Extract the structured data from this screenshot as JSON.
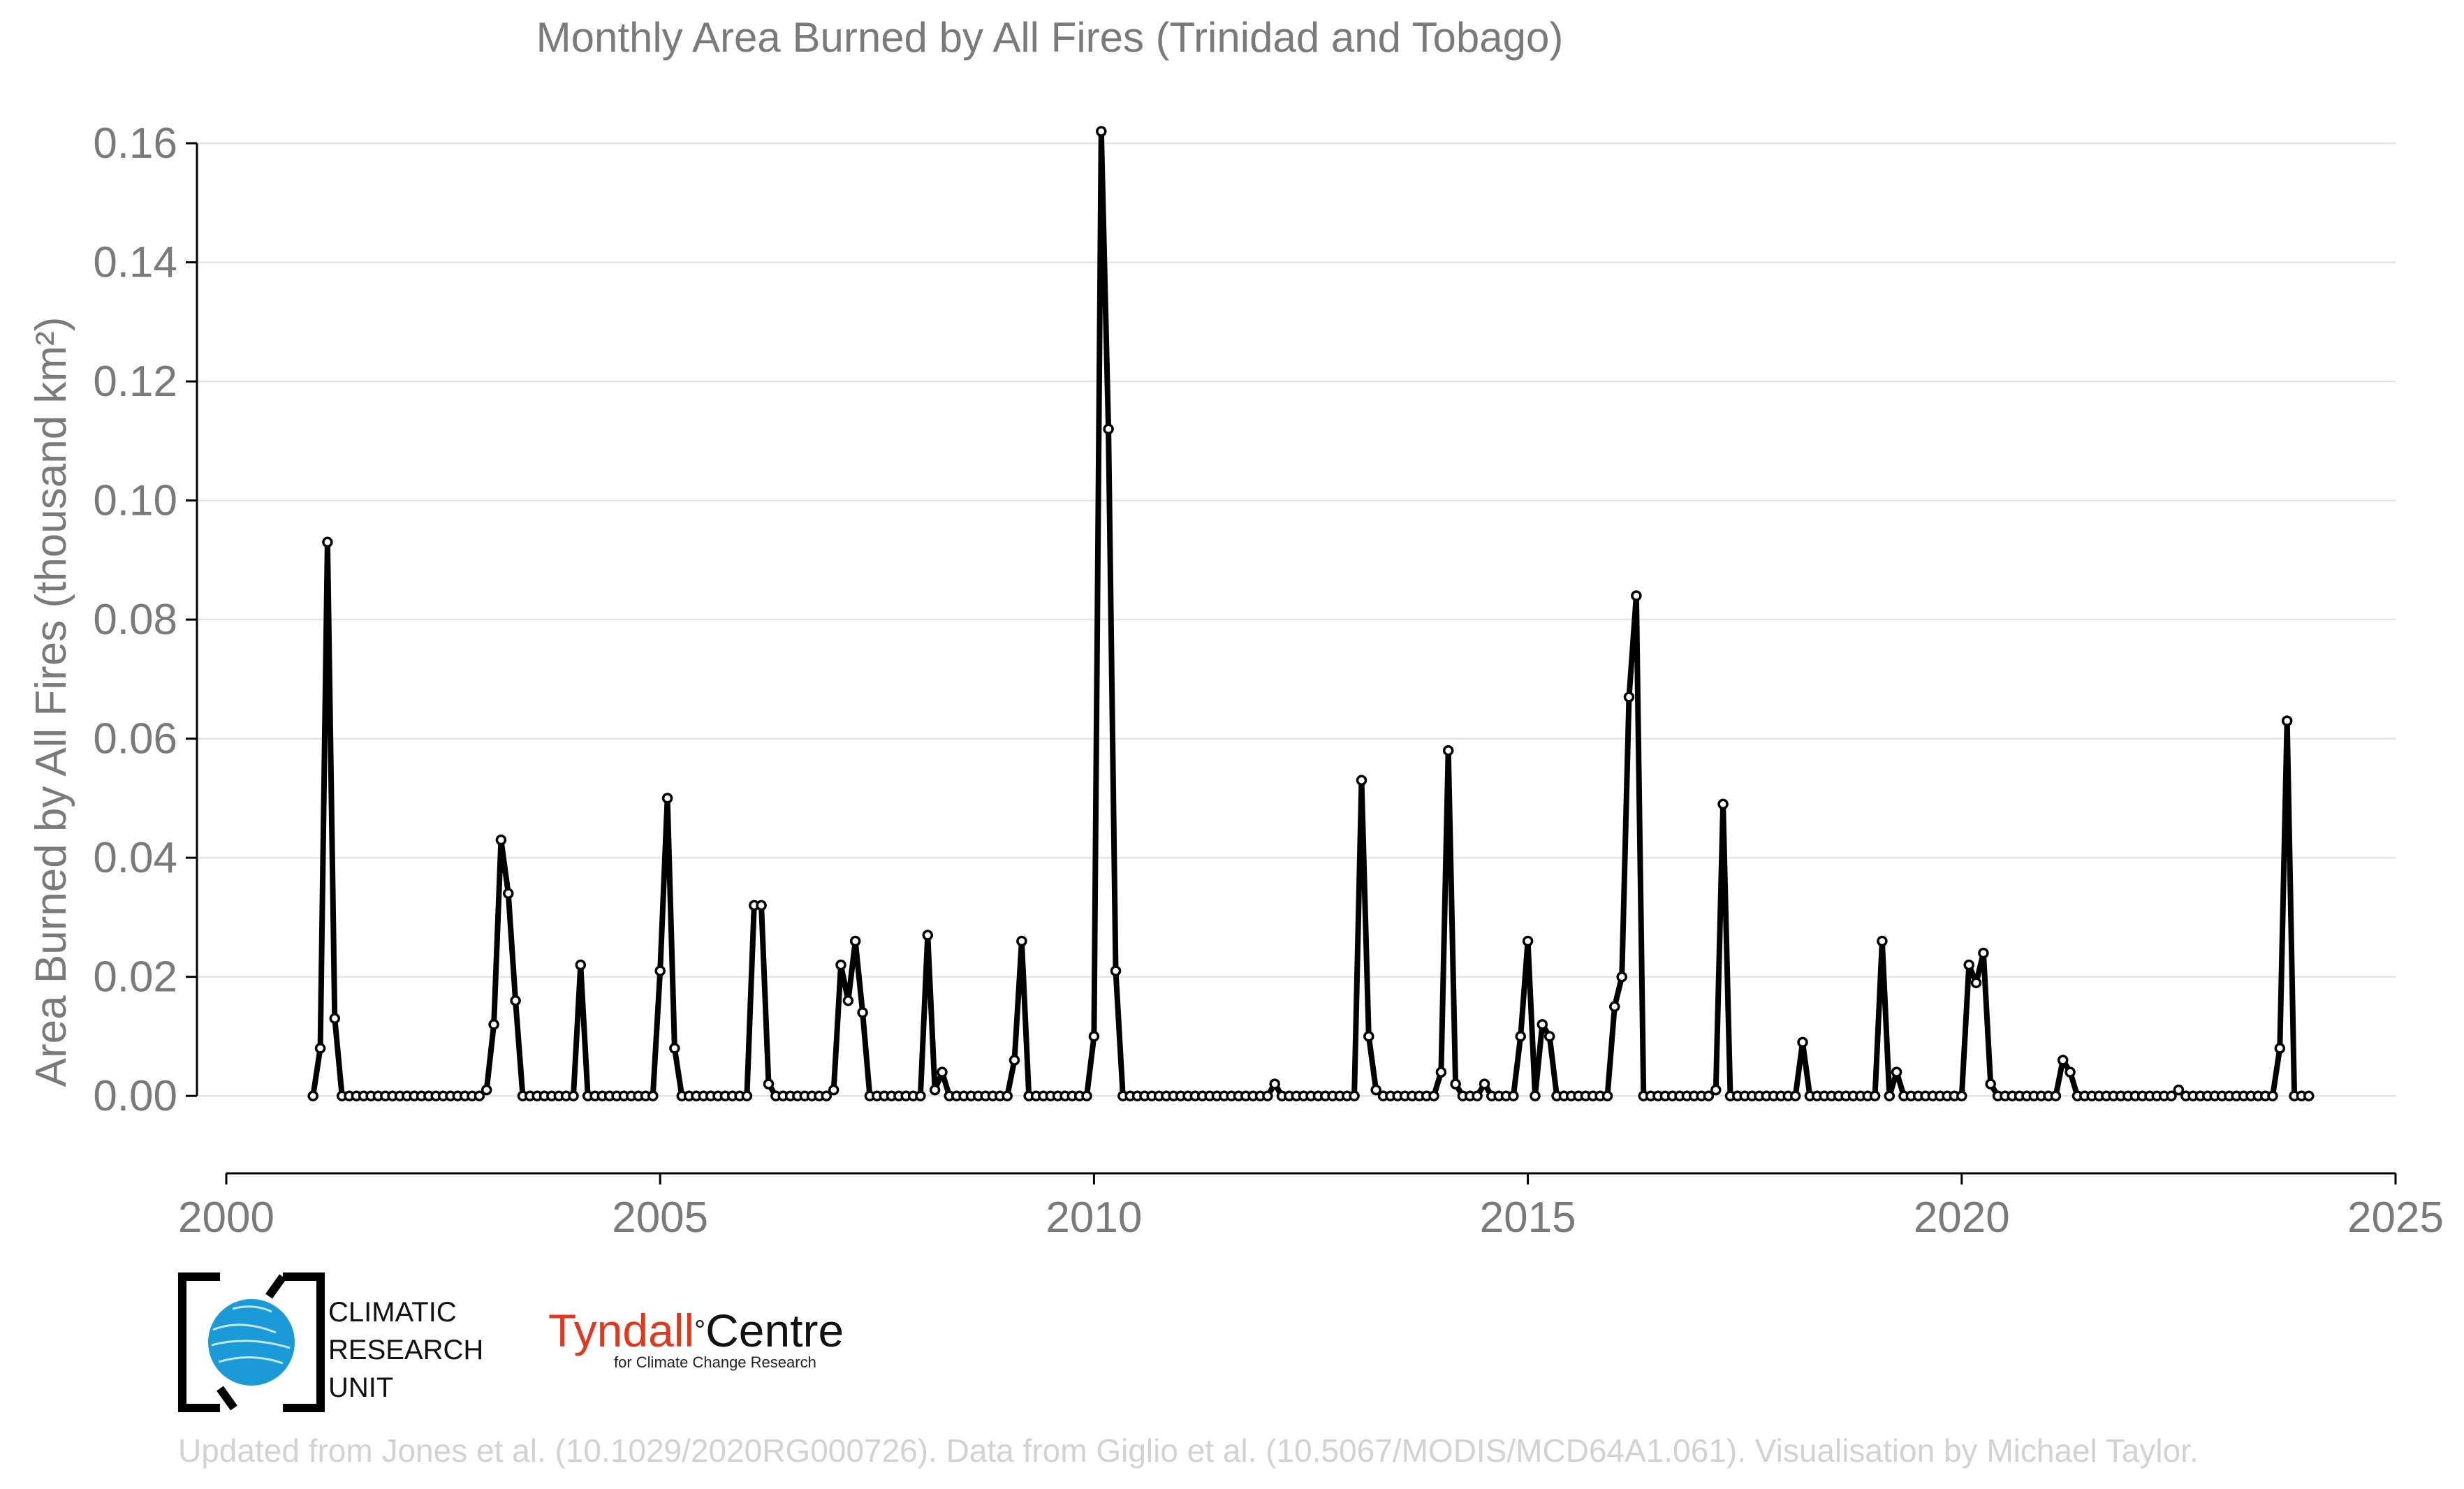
{
  "chart_data": {
    "type": "line",
    "title": "Monthly Area Burned by All Fires (Trinidad and Tobago)",
    "ylabel": "Area Burned by All Fires (thousand km²)",
    "xlabel": "",
    "xlim": [
      2000,
      2025
    ],
    "ylim": [
      -0.013,
      0.164
    ],
    "xticks": [
      2000,
      2005,
      2010,
      2015,
      2020,
      2025
    ],
    "yticks": [
      0.0,
      0.02,
      0.04,
      0.06,
      0.08,
      0.1,
      0.12,
      0.14,
      0.16
    ],
    "ytick_labels": [
      "0.00",
      "0.02",
      "0.04",
      "0.06",
      "0.08",
      "0.10",
      "0.12",
      "0.14",
      "0.16"
    ],
    "grid": "horizontal",
    "line_color": "#000000",
    "marker_fill": "#ffffff",
    "start": "2001-01",
    "series": [
      {
        "values": [
          0.0,
          0.008,
          0.093,
          0.013,
          0.0,
          0.0,
          0.0,
          0.0,
          0.0,
          0.0,
          0.0,
          0.0,
          0.0,
          0.0,
          0.0,
          0.0,
          0.0,
          0.0,
          0.0,
          0.0,
          0.0,
          0.0,
          0.0,
          0.0,
          0.001,
          0.012,
          0.043,
          0.034,
          0.016,
          0.0,
          0.0,
          0.0,
          0.0,
          0.0,
          0.0,
          0.0,
          0.0,
          0.022,
          0.0,
          0.0,
          0.0,
          0.0,
          0.0,
          0.0,
          0.0,
          0.0,
          0.0,
          0.0,
          0.021,
          0.05,
          0.008,
          0.0,
          0.0,
          0.0,
          0.0,
          0.0,
          0.0,
          0.0,
          0.0,
          0.0,
          0.0,
          0.032,
          0.032,
          0.002,
          0.0,
          0.0,
          0.0,
          0.0,
          0.0,
          0.0,
          0.0,
          0.0,
          0.001,
          0.022,
          0.016,
          0.026,
          0.014,
          0.0,
          0.0,
          0.0,
          0.0,
          0.0,
          0.0,
          0.0,
          0.0,
          0.027,
          0.001,
          0.004,
          0.0,
          0.0,
          0.0,
          0.0,
          0.0,
          0.0,
          0.0,
          0.0,
          0.0,
          0.006,
          0.026,
          0.0,
          0.0,
          0.0,
          0.0,
          0.0,
          0.0,
          0.0,
          0.0,
          0.0,
          0.01,
          0.162,
          0.112,
          0.021,
          0.0,
          0.0,
          0.0,
          0.0,
          0.0,
          0.0,
          0.0,
          0.0,
          0.0,
          0.0,
          0.0,
          0.0,
          0.0,
          0.0,
          0.0,
          0.0,
          0.0,
          0.0,
          0.0,
          0.0,
          0.0,
          0.002,
          0.0,
          0.0,
          0.0,
          0.0,
          0.0,
          0.0,
          0.0,
          0.0,
          0.0,
          0.0,
          0.0,
          0.053,
          0.01,
          0.001,
          0.0,
          0.0,
          0.0,
          0.0,
          0.0,
          0.0,
          0.0,
          0.0,
          0.004,
          0.058,
          0.002,
          0.0,
          0.0,
          0.0,
          0.002,
          0.0,
          0.0,
          0.0,
          0.0,
          0.01,
          0.026,
          0.0,
          0.012,
          0.01,
          0.0,
          0.0,
          0.0,
          0.0,
          0.0,
          0.0,
          0.0,
          0.0,
          0.015,
          0.02,
          0.067,
          0.084,
          0.0,
          0.0,
          0.0,
          0.0,
          0.0,
          0.0,
          0.0,
          0.0,
          0.0,
          0.0,
          0.001,
          0.049,
          0.0,
          0.0,
          0.0,
          0.0,
          0.0,
          0.0,
          0.0,
          0.0,
          0.0,
          0.0,
          0.009,
          0.0,
          0.0,
          0.0,
          0.0,
          0.0,
          0.0,
          0.0,
          0.0,
          0.0,
          0.0,
          0.026,
          0.0,
          0.004,
          0.0,
          0.0,
          0.0,
          0.0,
          0.0,
          0.0,
          0.0,
          0.0,
          0.0,
          0.022,
          0.019,
          0.024,
          0.002,
          0.0,
          0.0,
          0.0,
          0.0,
          0.0,
          0.0,
          0.0,
          0.0,
          0.0,
          0.006,
          0.004,
          0.0,
          0.0,
          0.0,
          0.0,
          0.0,
          0.0,
          0.0,
          0.0,
          0.0,
          0.0,
          0.0,
          0.0,
          0.0,
          0.0,
          0.001,
          0.0,
          0.0,
          0.0,
          0.0,
          0.0,
          0.0,
          0.0,
          0.0,
          0.0,
          0.0,
          0.0,
          0.0,
          0.0,
          0.008,
          0.063,
          0.0,
          0.0,
          0.0
        ]
      }
    ]
  },
  "logos": {
    "cru": {
      "line1": "CLIMATIC",
      "line2": "RESEARCH",
      "line3": "UNIT"
    },
    "tyndall": {
      "name_red": "Tyndall",
      "degree": "°",
      "name_black": "Centre",
      "subtitle": "for Climate Change Research"
    }
  },
  "footer": "Updated from Jones et al. (10.1029/2020RG000726). Data from Giglio et al. (10.5067/MODIS/MCD64A1.061). Visualisation by Michael Taylor.",
  "colors": {
    "text": "#7a7a7a",
    "grid": "#e4e4e4",
    "footer": "#d2d2d2",
    "cru_blue": "#1a9ad6",
    "tyndall_red": "#e0371e"
  }
}
